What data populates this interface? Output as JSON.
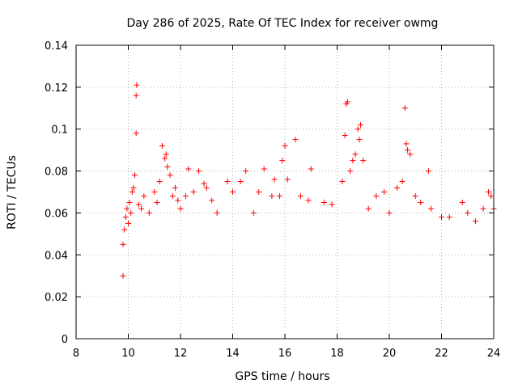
{
  "chart_data": {
    "type": "scatter",
    "title": "Day 286 of 2025, Rate Of TEC Index for receiver owmg",
    "xlabel": "GPS time / hours",
    "ylabel": "ROTI / TECUs",
    "xlim": [
      8,
      24
    ],
    "ylim": [
      0,
      0.14
    ],
    "x_ticks": [
      8,
      10,
      12,
      14,
      16,
      18,
      20,
      22,
      24
    ],
    "x_tick_labels": [
      "8",
      "10",
      "12",
      "14",
      "16",
      "18",
      "20",
      "22",
      "24"
    ],
    "y_ticks": [
      0,
      0.02,
      0.04,
      0.06,
      0.08,
      0.1,
      0.12,
      0.14
    ],
    "y_tick_labels": [
      "0",
      "0.02",
      "0.04",
      "0.06",
      "0.08",
      "0.1",
      "0.12",
      "0.14"
    ],
    "grid": true,
    "marker": "plus",
    "color": "#ff0000",
    "series": [
      {
        "name": "ROTI",
        "points": [
          [
            9.8,
            0.03
          ],
          [
            9.8,
            0.045
          ],
          [
            9.85,
            0.052
          ],
          [
            9.9,
            0.058
          ],
          [
            9.95,
            0.062
          ],
          [
            10.0,
            0.055
          ],
          [
            10.05,
            0.065
          ],
          [
            10.1,
            0.06
          ],
          [
            10.15,
            0.07
          ],
          [
            10.2,
            0.072
          ],
          [
            10.25,
            0.078
          ],
          [
            10.3,
            0.098
          ],
          [
            10.3,
            0.116
          ],
          [
            10.32,
            0.121
          ],
          [
            10.4,
            0.064
          ],
          [
            10.5,
            0.062
          ],
          [
            10.6,
            0.068
          ],
          [
            10.8,
            0.06
          ],
          [
            11.0,
            0.07
          ],
          [
            11.1,
            0.065
          ],
          [
            11.2,
            0.075
          ],
          [
            11.3,
            0.092
          ],
          [
            11.4,
            0.086
          ],
          [
            11.45,
            0.088
          ],
          [
            11.5,
            0.082
          ],
          [
            11.6,
            0.078
          ],
          [
            11.7,
            0.068
          ],
          [
            11.8,
            0.072
          ],
          [
            11.9,
            0.066
          ],
          [
            12.0,
            0.062
          ],
          [
            12.2,
            0.068
          ],
          [
            12.3,
            0.081
          ],
          [
            12.5,
            0.07
          ],
          [
            12.7,
            0.08
          ],
          [
            12.9,
            0.074
          ],
          [
            13.0,
            0.072
          ],
          [
            13.2,
            0.066
          ],
          [
            13.4,
            0.06
          ],
          [
            13.8,
            0.075
          ],
          [
            14.0,
            0.07
          ],
          [
            14.3,
            0.075
          ],
          [
            14.5,
            0.08
          ],
          [
            14.8,
            0.06
          ],
          [
            15.0,
            0.07
          ],
          [
            15.2,
            0.081
          ],
          [
            15.5,
            0.068
          ],
          [
            15.6,
            0.076
          ],
          [
            15.8,
            0.068
          ],
          [
            15.9,
            0.085
          ],
          [
            16.0,
            0.092
          ],
          [
            16.1,
            0.076
          ],
          [
            16.4,
            0.095
          ],
          [
            16.6,
            0.068
          ],
          [
            16.9,
            0.066
          ],
          [
            17.0,
            0.081
          ],
          [
            17.5,
            0.065
          ],
          [
            17.8,
            0.064
          ],
          [
            18.2,
            0.075
          ],
          [
            18.3,
            0.097
          ],
          [
            18.35,
            0.112
          ],
          [
            18.4,
            0.113
          ],
          [
            18.5,
            0.08
          ],
          [
            18.6,
            0.085
          ],
          [
            18.7,
            0.088
          ],
          [
            18.8,
            0.1
          ],
          [
            18.85,
            0.095
          ],
          [
            18.9,
            0.102
          ],
          [
            19.0,
            0.085
          ],
          [
            19.2,
            0.062
          ],
          [
            19.5,
            0.068
          ],
          [
            19.8,
            0.07
          ],
          [
            20.0,
            0.06
          ],
          [
            20.3,
            0.072
          ],
          [
            20.5,
            0.075
          ],
          [
            20.6,
            0.11
          ],
          [
            20.65,
            0.093
          ],
          [
            20.7,
            0.09
          ],
          [
            20.8,
            0.088
          ],
          [
            21.0,
            0.068
          ],
          [
            21.2,
            0.065
          ],
          [
            21.5,
            0.08
          ],
          [
            21.6,
            0.062
          ],
          [
            22.0,
            0.058
          ],
          [
            22.3,
            0.058
          ],
          [
            22.8,
            0.065
          ],
          [
            23.0,
            0.06
          ],
          [
            23.3,
            0.056
          ],
          [
            23.6,
            0.062
          ],
          [
            23.8,
            0.07
          ],
          [
            23.9,
            0.068
          ],
          [
            24.0,
            0.062
          ]
        ]
      }
    ]
  }
}
